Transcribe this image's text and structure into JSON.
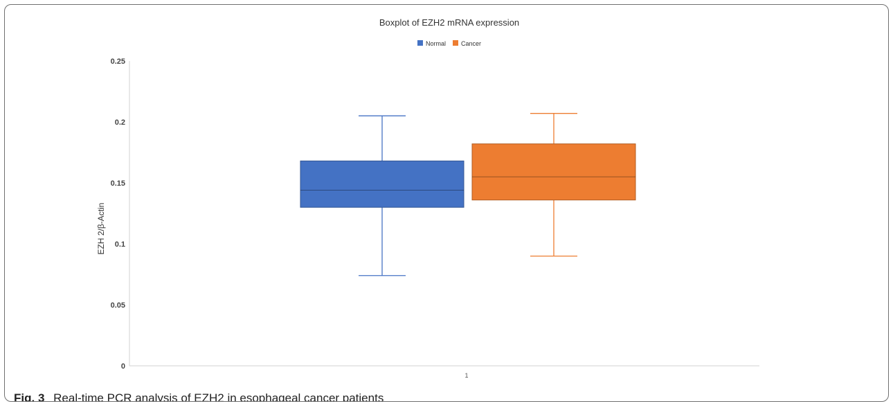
{
  "chart_data": {
    "type": "boxplot",
    "title": "Boxplot of EZH2 mRNA expression",
    "xlabel": "",
    "ylabel": "EZH 2/β-Actin",
    "ylim": [
      0,
      0.25
    ],
    "y_ticks": [
      "0",
      "0.05",
      "0.1",
      "0.15",
      "0.2",
      "0.25"
    ],
    "y_tick_values": [
      0,
      0.05,
      0.1,
      0.15,
      0.2,
      0.25
    ],
    "categories": [
      "1"
    ],
    "legend_placement": "top-center",
    "grid": false,
    "series": [
      {
        "name": "Normal",
        "color": "#4472C4",
        "min": 0.074,
        "q1": 0.13,
        "median": 0.144,
        "q3": 0.168,
        "max": 0.205
      },
      {
        "name": "Cancer",
        "color": "#ED7D31",
        "min": 0.09,
        "q1": 0.136,
        "median": 0.155,
        "q3": 0.182,
        "max": 0.207
      }
    ]
  },
  "caption": {
    "label": "Fig. 3",
    "text": "Real-time PCR analysis of EZH2 in esophageal cancer patients"
  }
}
